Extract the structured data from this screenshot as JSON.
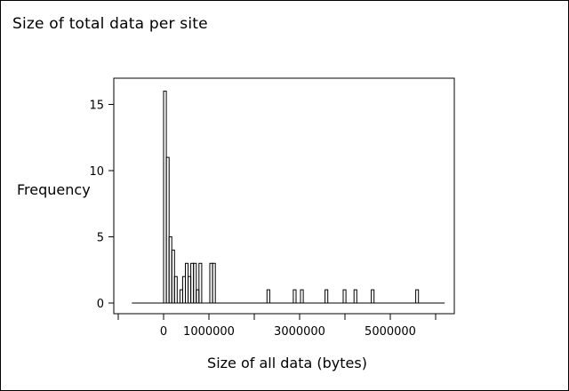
{
  "page": {
    "title": "Size of total data per site"
  },
  "chart_data": {
    "type": "bar",
    "title": "Size of total data per site",
    "xlabel": "Size of all data (bytes)",
    "ylabel": "Frequency",
    "xlim": [
      -1000000,
      6300000
    ],
    "ylim": [
      0,
      16.5
    ],
    "x_ticks": [
      0,
      1000000,
      3000000,
      5000000
    ],
    "x_tick_labels": [
      "0",
      "1000000",
      "3000000",
      "5000000"
    ],
    "x_minor_ticks": [
      -1000000,
      2000000,
      4000000,
      6000000
    ],
    "y_ticks": [
      0,
      5,
      10,
      15
    ],
    "y_tick_labels": [
      "0",
      "5",
      "10",
      "15"
    ],
    "bin_width": 60000,
    "baseline_x_range": [
      -700000,
      6200000
    ],
    "bins": [
      {
        "x": 0,
        "count": 16
      },
      {
        "x": 60000,
        "count": 11
      },
      {
        "x": 120000,
        "count": 5
      },
      {
        "x": 180000,
        "count": 4
      },
      {
        "x": 240000,
        "count": 2
      },
      {
        "x": 360000,
        "count": 1
      },
      {
        "x": 420000,
        "count": 2
      },
      {
        "x": 480000,
        "count": 3
      },
      {
        "x": 540000,
        "count": 2
      },
      {
        "x": 600000,
        "count": 3
      },
      {
        "x": 660000,
        "count": 3
      },
      {
        "x": 720000,
        "count": 1
      },
      {
        "x": 780000,
        "count": 3
      },
      {
        "x": 1020000,
        "count": 3
      },
      {
        "x": 1080000,
        "count": 3
      },
      {
        "x": 2280000,
        "count": 1
      },
      {
        "x": 2860000,
        "count": 1
      },
      {
        "x": 3020000,
        "count": 1
      },
      {
        "x": 3560000,
        "count": 1
      },
      {
        "x": 3960000,
        "count": 1
      },
      {
        "x": 4200000,
        "count": 1
      },
      {
        "x": 4580000,
        "count": 1
      },
      {
        "x": 5560000,
        "count": 1
      }
    ],
    "grid": false,
    "legend": "none"
  },
  "colors": {
    "line": "#000000",
    "background": "#ffffff"
  }
}
